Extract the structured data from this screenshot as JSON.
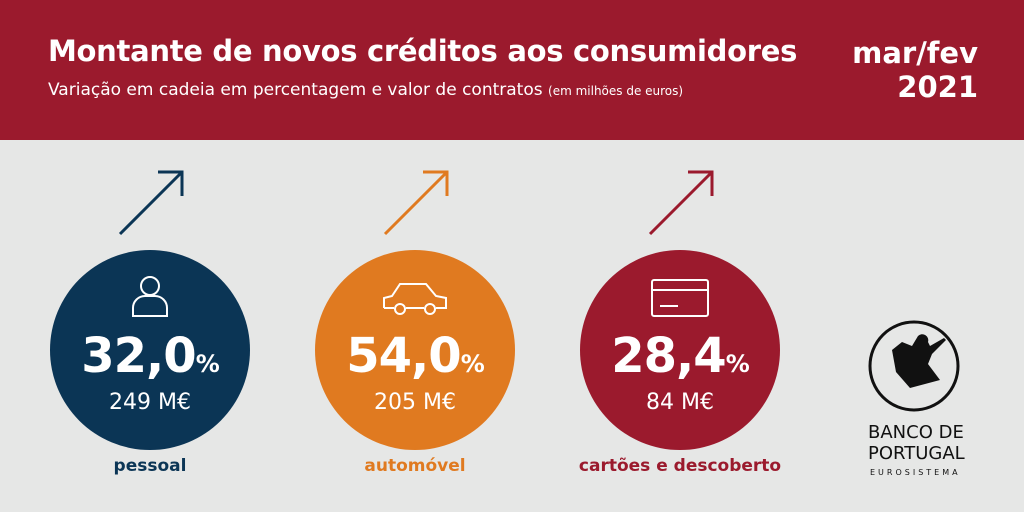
{
  "header": {
    "title": "Montante de novos créditos aos consumidores",
    "subtitle": "Variação em cadeia em percentagem e valor de contratos",
    "subtitle_note": "(em milhões de euros)",
    "period_line1": "mar/fev",
    "period_line2": "2021"
  },
  "cards": [
    {
      "pct": "32,0",
      "pct_unit": "%",
      "value": "249 M€",
      "label": "pessoal",
      "color": "#0b3555",
      "icon": "person-icon",
      "trend": "up"
    },
    {
      "pct": "54,0",
      "pct_unit": "%",
      "value": "205 M€",
      "label": "automóvel",
      "color": "#e07a20",
      "icon": "car-icon",
      "trend": "up"
    },
    {
      "pct": "28,4",
      "pct_unit": "%",
      "value": "84 M€",
      "label": "cartões e descoberto",
      "color": "#9b1a2d",
      "icon": "credit-card-icon",
      "trend": "up"
    }
  ],
  "logo": {
    "name_line1": "BANCO DE",
    "name_line2": "PORTUGAL",
    "sub": "EUROSISTEMA"
  }
}
